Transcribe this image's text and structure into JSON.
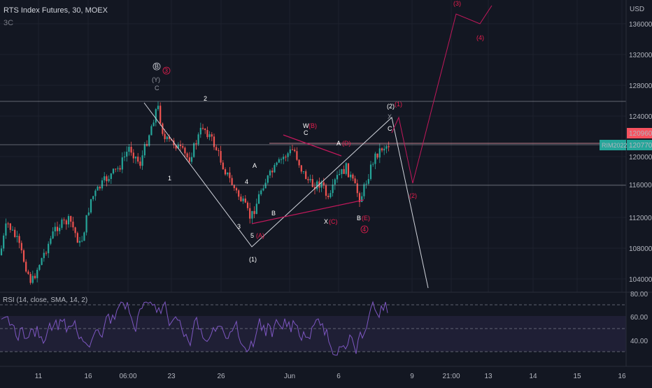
{
  "header": {
    "symbol": "RTS Index Futures, 30, MOEX",
    "indicator": "3C"
  },
  "price_axis": {
    "currency": "USD",
    "ticks": [
      "136000",
      "132000",
      "128000",
      "124000",
      "120000",
      "116000",
      "112000",
      "108000",
      "104000"
    ],
    "last_price_label": "120770",
    "high_label": "120960",
    "contract_label": "RIM2022"
  },
  "rsi_axis": {
    "ticks": [
      "80.00",
      "60.00",
      "40.00"
    ]
  },
  "rsi": {
    "title": "RSI (14, close, SMA, 14, 2)"
  },
  "time_axis": {
    "ticks": [
      "11",
      "16",
      "06:00",
      "23",
      "26",
      "Jun",
      "6",
      "9",
      "21:00",
      "13",
      "14",
      "15",
      "16"
    ]
  },
  "colors": {
    "background": "#131722",
    "up": "#26a69a",
    "down": "#ef5350",
    "wave_red": "#e91e4f",
    "rsi_line": "#7e57c2",
    "last_price_badge": "#26a69a",
    "high_badge": "#f7525f"
  },
  "annotations": {
    "top_B": "B",
    "red_3_top": "3",
    "Y_C": "(Y)",
    "C_top": "C",
    "wave_2": "2",
    "wave_1": "1",
    "wave_3": "3",
    "wave_4": "4",
    "wave_5": "5",
    "red_A": "(A)",
    "wave_1_paren": "(1)",
    "wave_A": "A",
    "wave_B_mid": "B",
    "W": "W",
    "red_B": "(B)",
    "C_mid": "C",
    "A_right": "A",
    "red_D": "(D)",
    "X": "X",
    "red_C": "(C)",
    "B_right": "B",
    "red_E": "(E)",
    "red_4_circle": "4",
    "wave_2_paren": "(2)",
    "red_1": "(1)",
    "X_small": "X",
    "C_small": "C",
    "red_2": "(2)",
    "red_3": "(3)",
    "red_4": "(4)"
  },
  "chart_data": {
    "type": "candlestick",
    "price_range": [
      102000,
      139000
    ],
    "rsi_range": [
      20,
      85
    ]
  }
}
